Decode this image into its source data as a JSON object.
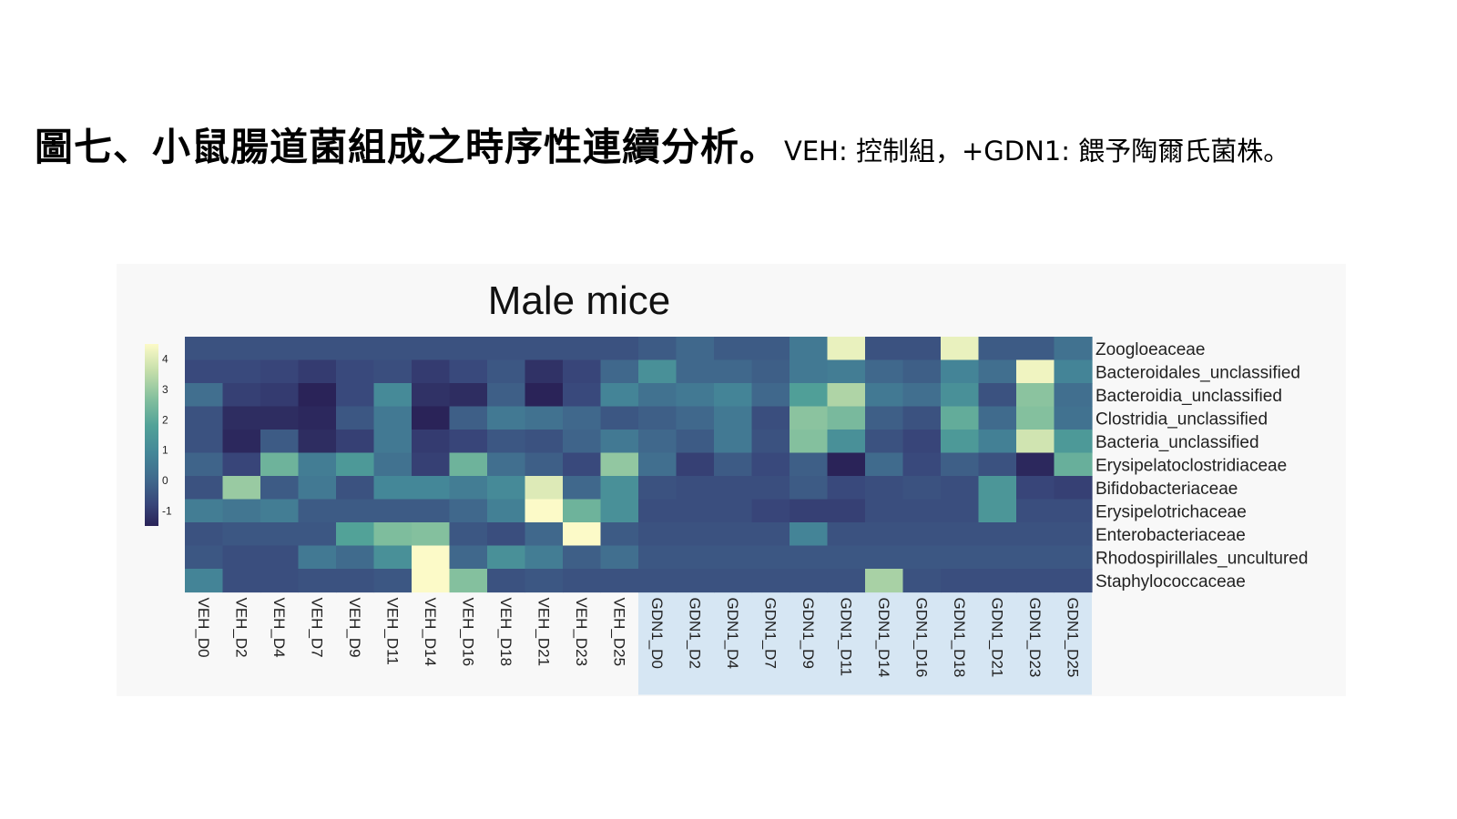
{
  "caption": {
    "bold": "圖七、小鼠腸道菌組成之時序性連續分析。",
    "normal": "VEH: 控制組，+GDN1: 餵予陶爾氏菌株。"
  },
  "chart_data": {
    "type": "heatmap",
    "title": "Male mice",
    "columns": [
      "VEH_D0",
      "VEH_D2",
      "VEH_D4",
      "VEH_D7",
      "VEH_D9",
      "VEH_D11",
      "VEH_D14",
      "VEH_D16",
      "VEH_D18",
      "VEH_D21",
      "VEH_D23",
      "VEH_D25",
      "GDN1_D0",
      "GDN1_D2",
      "GDN1_D4",
      "GDN1_D7",
      "GDN1_D9",
      "GDN1_D11",
      "GDN1_D14",
      "GDN1_D16",
      "GDN1_D18",
      "GDN1_D21",
      "GDN1_D23",
      "GDN1_D25"
    ],
    "rows": [
      "Zoogloeaceae",
      "Bacteroidales_unclassified",
      "Bacteroidia_unclassified",
      "Clostridia_unclassified",
      "Bacteria_unclassified",
      "Erysipelatoclostridiaceae",
      "Bifidobacteriaceae",
      "Erysipelotrichaceae",
      "Enterobacteriaceae",
      "Rhodospirillales_uncultured",
      "Staphylococcaceae"
    ],
    "values": [
      [
        -0.5,
        -0.5,
        -0.5,
        -0.5,
        -0.5,
        -0.5,
        -0.5,
        -0.5,
        -0.5,
        -0.5,
        -0.5,
        -0.5,
        -0.3,
        0.0,
        -0.3,
        -0.3,
        0.5,
        4.2,
        -0.5,
        -0.5,
        4.2,
        -0.3,
        -0.3,
        0.3
      ],
      [
        -0.7,
        -0.7,
        -0.8,
        -1.0,
        -0.7,
        -0.6,
        -1.0,
        -0.7,
        -0.4,
        -1.2,
        -0.8,
        0.0,
        1.2,
        0.0,
        0.0,
        -0.2,
        0.5,
        0.6,
        0.0,
        -0.2,
        0.8,
        0.2,
        4.3,
        0.8
      ],
      [
        0.2,
        -0.9,
        -1.0,
        -1.6,
        -0.7,
        1.0,
        -1.2,
        -1.3,
        -0.2,
        -2.2,
        -0.7,
        0.8,
        0.3,
        0.5,
        0.8,
        0.0,
        1.7,
        3.3,
        0.5,
        0.2,
        1.2,
        -0.5,
        2.8,
        0.2
      ],
      [
        -0.5,
        -1.3,
        -1.3,
        -1.4,
        -0.4,
        0.5,
        -1.5,
        -0.2,
        0.5,
        0.3,
        0.0,
        -0.4,
        -0.2,
        0.0,
        0.5,
        -0.6,
        2.8,
        2.5,
        -0.2,
        -0.5,
        2.1,
        0.1,
        2.7,
        0.3
      ],
      [
        -0.5,
        -1.4,
        -0.3,
        -1.3,
        -0.9,
        0.5,
        -1.0,
        -0.8,
        -0.4,
        -0.5,
        -0.1,
        0.5,
        0.0,
        -0.3,
        0.5,
        -0.5,
        2.7,
        1.2,
        -0.5,
        -0.8,
        1.5,
        0.7,
        3.8,
        1.5
      ],
      [
        -0.1,
        -0.8,
        2.3,
        0.6,
        1.5,
        0.3,
        -0.9,
        2.3,
        0.2,
        -0.2,
        -0.7,
        2.9,
        0.2,
        -0.9,
        -0.3,
        -0.7,
        -0.2,
        -1.7,
        0.1,
        -0.7,
        -0.2,
        -0.5,
        -1.4,
        2.2
      ],
      [
        -0.5,
        3.0,
        -0.3,
        0.5,
        -0.5,
        0.9,
        0.9,
        0.6,
        1.0,
        4.0,
        0.0,
        1.2,
        -0.5,
        -0.6,
        -0.6,
        -0.6,
        -0.3,
        -0.7,
        -0.6,
        -0.5,
        -0.6,
        1.4,
        -0.8,
        -0.9
      ],
      [
        0.6,
        0.4,
        0.6,
        -0.3,
        -0.3,
        -0.3,
        -0.3,
        0.0,
        0.7,
        4.5,
        2.3,
        1.2,
        -0.6,
        -0.6,
        -0.6,
        -0.8,
        -0.9,
        -0.9,
        -0.6,
        -0.6,
        -0.6,
        1.4,
        -0.6,
        -0.6
      ],
      [
        -0.5,
        -0.4,
        -0.4,
        -0.4,
        1.8,
        2.6,
        2.7,
        -0.4,
        -0.6,
        0.0,
        4.5,
        -0.3,
        -0.5,
        -0.5,
        -0.5,
        -0.5,
        0.8,
        -0.5,
        -0.5,
        -0.5,
        -0.5,
        -0.5,
        -0.5,
        -0.5
      ],
      [
        -0.4,
        -0.6,
        -0.6,
        0.5,
        0.1,
        1.2,
        4.8,
        0.0,
        1.2,
        0.6,
        -0.2,
        0.2,
        -0.4,
        -0.4,
        -0.4,
        -0.4,
        -0.4,
        -0.4,
        -0.4,
        -0.4,
        -0.4,
        -0.4,
        -0.4,
        -0.4
      ],
      [
        0.8,
        -0.6,
        -0.6,
        -0.5,
        -0.5,
        -0.4,
        4.8,
        2.7,
        -0.5,
        -0.4,
        -0.5,
        -0.5,
        -0.5,
        -0.5,
        -0.5,
        -0.5,
        -0.5,
        -0.5,
        3.2,
        -0.5,
        -0.6,
        -0.6,
        -0.6,
        -0.6
      ]
    ],
    "colorbar": {
      "ticks": [
        "4",
        "3",
        "2",
        "1",
        "0",
        "-1"
      ],
      "range": [
        -1.5,
        4.5
      ]
    },
    "highlight_group": "GDN1",
    "colors": {
      "highlight_bg": "#d6e6f3",
      "panel_bg": "#f8f8f8"
    }
  }
}
